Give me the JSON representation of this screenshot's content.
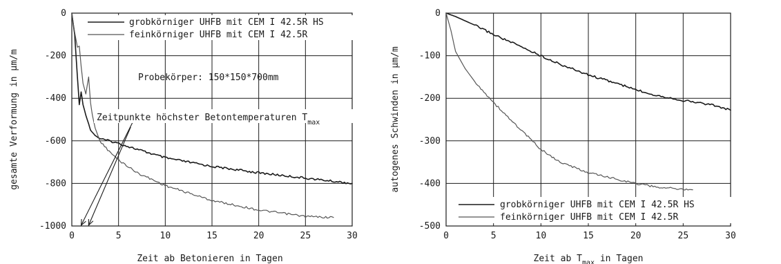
{
  "chart_data": [
    {
      "type": "line",
      "xlabel": "Zeit ab Betonieren in Tagen",
      "ylabel": "gesamte Verformung in µm/m",
      "xlim": [
        0,
        30
      ],
      "ylim": [
        -1000,
        0
      ],
      "x_ticks": [
        0,
        5,
        10,
        15,
        20,
        25,
        30
      ],
      "y_ticks": [
        0,
        -200,
        -400,
        -600,
        -800,
        -1000
      ],
      "grid": true,
      "legend_position": "top-right",
      "annotations": {
        "specimen": "Probekörper: 150*150*700mm",
        "tmax_prefix": "Zeitpunkte höchster Betontemperaturen T",
        "tmax_sub": "max"
      },
      "arrow_targets_x": [
        1.0,
        1.8
      ],
      "series": [
        {
          "name": "grobkörniger UHFB mit CEM I 42.5R HS",
          "color": "#1a1a1a",
          "x": [
            0,
            0.3,
            0.6,
            0.8,
            1.0,
            1.2,
            1.5,
            1.8,
            2.0,
            2.5,
            3,
            4,
            5,
            7,
            10,
            15,
            20,
            25,
            28,
            30
          ],
          "y": [
            0,
            -100,
            -300,
            -430,
            -370,
            -430,
            -480,
            -520,
            -550,
            -575,
            -590,
            -600,
            -612,
            -640,
            -680,
            -720,
            -750,
            -775,
            -790,
            -800
          ]
        },
        {
          "name": "feinkörniger UHFB mit CEM I 42.5R",
          "color": "#555555",
          "x": [
            0,
            0.3,
            0.6,
            0.8,
            1.0,
            1.2,
            1.5,
            1.8,
            2.0,
            2.2,
            2.5,
            3,
            4,
            5,
            7,
            10,
            15,
            20,
            25,
            28
          ],
          "y": [
            0,
            -90,
            -160,
            -155,
            -250,
            -330,
            -380,
            -300,
            -420,
            -480,
            -540,
            -600,
            -650,
            -690,
            -750,
            -810,
            -880,
            -925,
            -955,
            -960
          ]
        }
      ]
    },
    {
      "type": "line",
      "xlabel_prefix": "Zeit ab T",
      "xlabel_sub": "max",
      "xlabel_suffix": " in Tagen",
      "ylabel": "autogenes Schwinden in µm/m",
      "xlim": [
        0,
        30
      ],
      "ylim": [
        -500,
        0
      ],
      "x_ticks": [
        0,
        5,
        10,
        15,
        20,
        25,
        30
      ],
      "y_ticks": [
        0,
        -100,
        -200,
        -300,
        -400,
        -500
      ],
      "grid": true,
      "legend_position": "bottom-right",
      "series": [
        {
          "name": "grobkörniger UHFB mit CEM I 42.5R HS",
          "color": "#1a1a1a",
          "x": [
            0,
            1,
            2,
            3,
            5,
            7,
            10,
            12,
            15,
            18,
            20,
            22,
            25,
            28,
            30
          ],
          "y": [
            0,
            -8,
            -18,
            -28,
            -50,
            -70,
            -100,
            -120,
            -145,
            -165,
            -180,
            -192,
            -205,
            -215,
            -228
          ]
        },
        {
          "name": "feinkörniger UHFB mit CEM I 42.5R",
          "color": "#555555",
          "x": [
            0,
            0.5,
            1,
            2,
            3,
            5,
            7,
            10,
            12,
            15,
            18,
            20,
            22,
            24,
            26
          ],
          "y": [
            0,
            -40,
            -90,
            -130,
            -160,
            -210,
            -255,
            -320,
            -350,
            -375,
            -390,
            -400,
            -408,
            -412,
            -415
          ]
        }
      ]
    }
  ]
}
